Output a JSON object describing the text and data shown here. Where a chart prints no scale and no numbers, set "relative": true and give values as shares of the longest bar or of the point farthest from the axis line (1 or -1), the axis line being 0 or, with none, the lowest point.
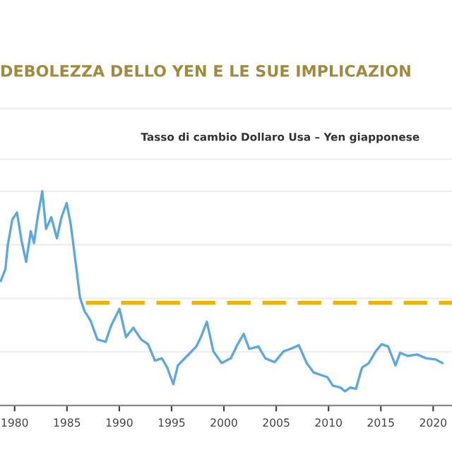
{
  "chart_data": {
    "type": "line",
    "title": "DEBOLEZZA DELLO YEN E LE SUE IMPLICAZION",
    "subtitle": "Tasso di cambio Dollaro Usa – Yen giapponese",
    "relative": true,
    "xlim": [
      1978.6,
      2021.8
    ],
    "xticks": [
      1980,
      1985,
      1990,
      1995,
      2000,
      2005,
      2010,
      2015,
      2020
    ],
    "grid": "y",
    "legend": false,
    "series": [
      {
        "color": "#5aa7e6",
        "x": [
          1978.68,
          1979.12,
          1979.34,
          1979.78,
          1980.22,
          1980.66,
          1981.1,
          1981.54,
          1981.85,
          1982.2,
          1982.64,
          1983.0,
          1983.5,
          1984.04,
          1984.48,
          1984.97,
          1985.36,
          1985.85,
          1986.24,
          1986.68,
          1987.25,
          1987.91,
          1988.7,
          1989.23,
          1990.02,
          1990.64,
          1991.34,
          1992.09,
          1992.75,
          1993.41,
          1994.07,
          1994.59,
          1995.16,
          1995.6,
          1996.48,
          1997.36,
          1997.8,
          1998.37,
          1998.99,
          1999.78,
          2000.66,
          2001.32,
          2001.89,
          2002.42,
          2003.3,
          2003.96,
          2004.84,
          2005.71,
          2006.37,
          2007.16,
          2007.91,
          2008.57,
          2009.23,
          2009.89,
          2010.42,
          2011.12,
          2011.56,
          2012.09,
          2012.62,
          2013.19,
          2013.85,
          2014.51,
          2015.08,
          2015.69,
          2016.4,
          2016.84,
          2017.58,
          2018.46,
          2019.34,
          2020.22,
          2020.88
        ],
        "values": [
          0.582,
          0.637,
          0.747,
          0.868,
          0.901,
          0.769,
          0.67,
          0.813,
          0.758,
          0.879,
          1.0,
          0.824,
          0.879,
          0.78,
          0.879,
          0.945,
          0.846,
          0.659,
          0.505,
          0.44,
          0.396,
          0.308,
          0.297,
          0.374,
          0.451,
          0.319,
          0.363,
          0.308,
          0.286,
          0.209,
          0.22,
          0.176,
          0.099,
          0.187,
          0.231,
          0.275,
          0.319,
          0.391,
          0.253,
          0.198,
          0.22,
          0.286,
          0.334,
          0.264,
          0.275,
          0.22,
          0.202,
          0.253,
          0.264,
          0.281,
          0.198,
          0.154,
          0.143,
          0.132,
          0.092,
          0.084,
          0.066,
          0.084,
          0.077,
          0.176,
          0.198,
          0.253,
          0.286,
          0.275,
          0.187,
          0.246,
          0.231,
          0.238,
          0.22,
          0.215,
          0.198
        ]
      },
      {
        "color": "#f0b400",
        "line_style": "dashed",
        "x": [
          1986.8,
          2021.8
        ],
        "values": [
          0.479,
          0.479
        ]
      }
    ]
  }
}
